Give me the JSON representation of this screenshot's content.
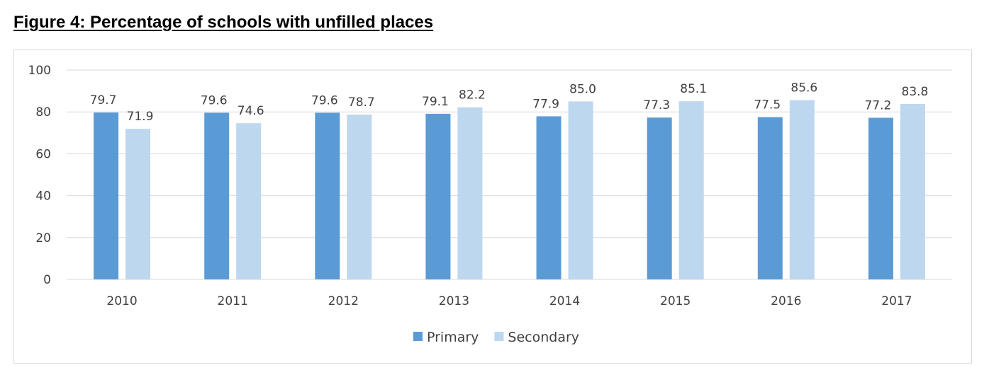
{
  "figure_title": "Figure 4: Percentage of schools with unfilled places",
  "colors": {
    "primary": "#5b9bd5",
    "secondary": "#bdd7ee",
    "grid": "#d9d9d9",
    "text": "#404040"
  },
  "chart_data": {
    "type": "bar",
    "title": "",
    "xlabel": "",
    "ylabel": "",
    "ylim": [
      0,
      100
    ],
    "yticks": [
      0,
      20,
      40,
      60,
      80,
      100
    ],
    "grid": true,
    "legend_position": "bottom",
    "categories": [
      "2010",
      "2011",
      "2012",
      "2013",
      "2014",
      "2015",
      "2016",
      "2017"
    ],
    "series": [
      {
        "name": "Primary",
        "values": [
          79.7,
          79.6,
          79.6,
          79.1,
          77.9,
          77.3,
          77.5,
          77.2
        ],
        "labels": [
          "79.7",
          "79.6",
          "79.6",
          "79.1",
          "77.9",
          "77.3",
          "77.5",
          "77.2"
        ]
      },
      {
        "name": "Secondary",
        "values": [
          71.9,
          74.6,
          78.7,
          82.2,
          85.0,
          85.1,
          85.6,
          83.8
        ],
        "labels": [
          "71.9",
          "74.6",
          "78.7",
          "82.2",
          "85.0",
          "85.1",
          "85.6",
          "83.8"
        ]
      }
    ]
  }
}
